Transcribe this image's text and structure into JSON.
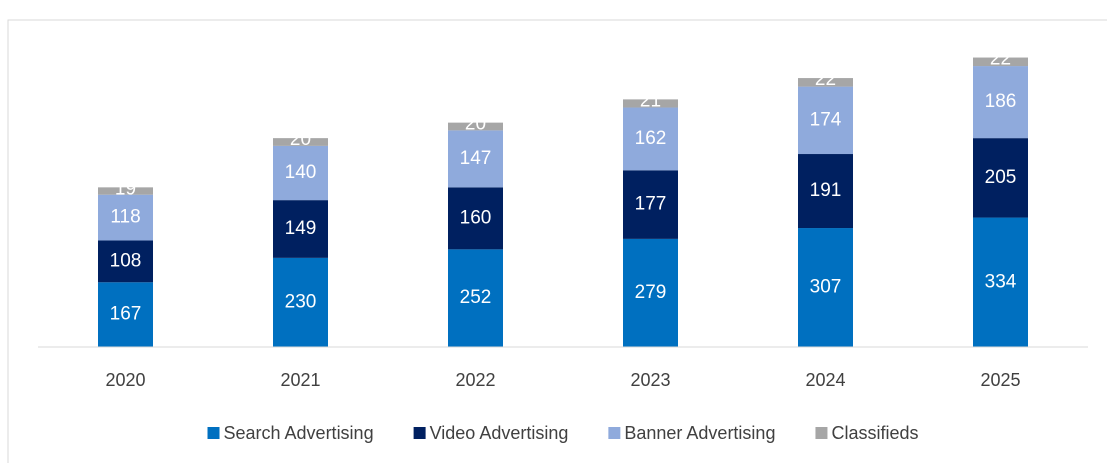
{
  "chart_data": {
    "type": "stacked_bar",
    "categories": [
      "2020",
      "2021",
      "2022",
      "2023",
      "2024",
      "2025"
    ],
    "series": [
      {
        "name": "Search Advertising",
        "color": "#0070c0",
        "values": [
          167,
          230,
          252,
          279,
          307,
          334
        ]
      },
      {
        "name": "Video Advertising",
        "color": "#002060",
        "values": [
          108,
          149,
          160,
          177,
          191,
          205
        ]
      },
      {
        "name": "Banner Advertising",
        "color": "#8faadc",
        "values": [
          118,
          140,
          147,
          162,
          174,
          186
        ]
      },
      {
        "name": "Classifieds",
        "color": "#a6a6a6",
        "values": [
          19,
          20,
          20,
          21,
          22,
          22
        ]
      }
    ],
    "ylim": [
      0,
      800
    ],
    "legend": "bottom"
  }
}
